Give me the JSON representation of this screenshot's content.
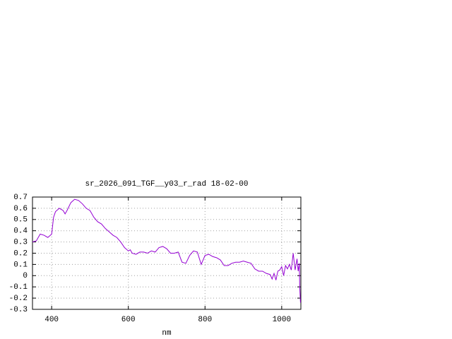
{
  "chart_data": {
    "type": "line",
    "title": "sr_2026_091_TGF__y03_r_rad 18-02-00",
    "xlabel": "nm",
    "x": [
      350,
      360,
      370,
      380,
      390,
      400,
      405,
      410,
      420,
      430,
      435,
      440,
      450,
      460,
      470,
      480,
      490,
      500,
      510,
      520,
      530,
      540,
      550,
      560,
      570,
      580,
      590,
      600,
      605,
      610,
      620,
      630,
      640,
      650,
      660,
      670,
      680,
      690,
      700,
      710,
      720,
      730,
      740,
      750,
      760,
      770,
      780,
      790,
      800,
      810,
      820,
      830,
      840,
      850,
      860,
      870,
      880,
      890,
      900,
      910,
      920,
      930,
      940,
      950,
      960,
      970,
      975,
      980,
      985,
      990,
      995,
      1000,
      1005,
      1010,
      1015,
      1020,
      1025,
      1030,
      1035,
      1040,
      1043,
      1046,
      1047,
      1049
    ],
    "series": [
      {
        "color": "#9400d3",
        "values": [
          0.3,
          0.31,
          0.37,
          0.36,
          0.34,
          0.37,
          0.52,
          0.57,
          0.6,
          0.58,
          0.55,
          0.58,
          0.65,
          0.68,
          0.67,
          0.64,
          0.6,
          0.58,
          0.52,
          0.48,
          0.46,
          0.42,
          0.39,
          0.36,
          0.34,
          0.3,
          0.25,
          0.22,
          0.23,
          0.2,
          0.19,
          0.21,
          0.21,
          0.2,
          0.22,
          0.21,
          0.25,
          0.26,
          0.24,
          0.2,
          0.2,
          0.21,
          0.12,
          0.11,
          0.18,
          0.22,
          0.21,
          0.1,
          0.18,
          0.19,
          0.17,
          0.16,
          0.14,
          0.09,
          0.09,
          0.11,
          0.12,
          0.12,
          0.13,
          0.12,
          0.11,
          0.06,
          0.04,
          0.04,
          0.02,
          0.01,
          -0.03,
          0.02,
          -0.04,
          0.04,
          0.05,
          0.08,
          0.0,
          0.09,
          0.06,
          0.1,
          0.05,
          0.2,
          0.05,
          0.15,
          0.04,
          0.11,
          -0.1,
          -0.24
        ]
      }
    ],
    "xlim": [
      350,
      1050
    ],
    "ylim": [
      -0.3,
      0.7
    ],
    "xticks": [
      400,
      600,
      800,
      1000
    ],
    "yticks": [
      -0.3,
      -0.2,
      -0.1,
      0,
      0.1,
      0.2,
      0.3,
      0.4,
      0.5,
      0.6,
      0.7
    ],
    "grid": true
  }
}
